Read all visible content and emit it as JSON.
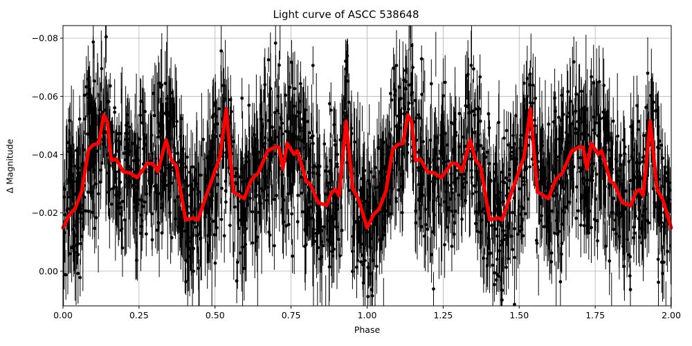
{
  "chart": {
    "title": "Light curve of ASCC 538648",
    "xlabel": "Phase",
    "ylabel": "Δ Magnitude",
    "xticks": [
      "0.00",
      "0.25",
      "0.50",
      "0.75",
      "1.00",
      "1.25",
      "1.50",
      "1.75",
      "2.00"
    ],
    "yticks": [
      "−0.08",
      "−0.06",
      "−0.04",
      "−0.02",
      "0.00"
    ],
    "colors": {
      "data": "#000000",
      "model": "#ff0000",
      "grid": "#b0b0b0"
    }
  },
  "chart_data": {
    "type": "scatter",
    "title": "Light curve of ASCC 538648",
    "xlabel": "Phase",
    "ylabel": "Δ Magnitude",
    "xlim": [
      0.0,
      2.0
    ],
    "ylim": [
      0.0119,
      -0.0843
    ],
    "y_inverted": true,
    "grid": true,
    "legend": null,
    "series": [
      {
        "name": "observations (with error bars)",
        "style": "black points with vertical error bars",
        "description": "Dense noisy phase-folded photometry spanning roughly -0.085 to +0.012 in magnitude, scatter following the red model envelope"
      },
      {
        "name": "model (smoothed phase curve)",
        "style": "thick red line",
        "period_in_phase": 1.0,
        "x": [
          0.0,
          0.023,
          0.039,
          0.062,
          0.084,
          0.1,
          0.118,
          0.134,
          0.146,
          0.159,
          0.175,
          0.198,
          0.221,
          0.244,
          0.278,
          0.296,
          0.312,
          0.339,
          0.357,
          0.373,
          0.403,
          0.43,
          0.444,
          0.471,
          0.516,
          0.537,
          0.56,
          0.596,
          0.619,
          0.642,
          0.673,
          0.698,
          0.71,
          0.723,
          0.737,
          0.76,
          0.771,
          0.801,
          0.812,
          0.839,
          0.867,
          0.885,
          0.896,
          0.908,
          0.931,
          0.953,
          0.971,
          1.0
        ],
        "y": [
          -0.0149,
          -0.0197,
          -0.0213,
          -0.0275,
          -0.0418,
          -0.0434,
          -0.0439,
          -0.0536,
          -0.0513,
          -0.038,
          -0.0385,
          -0.0342,
          -0.0337,
          -0.0321,
          -0.0371,
          -0.0368,
          -0.0342,
          -0.0451,
          -0.038,
          -0.0361,
          -0.0176,
          -0.0183,
          -0.0176,
          -0.0259,
          -0.0392,
          -0.0558,
          -0.0273,
          -0.0249,
          -0.0313,
          -0.0337,
          -0.0413,
          -0.0427,
          -0.0425,
          -0.0351,
          -0.0439,
          -0.0401,
          -0.0413,
          -0.0306,
          -0.0302,
          -0.0235,
          -0.0226,
          -0.0273,
          -0.028,
          -0.0259,
          -0.0515,
          -0.0282,
          -0.0249,
          -0.0149
        ]
      }
    ]
  }
}
